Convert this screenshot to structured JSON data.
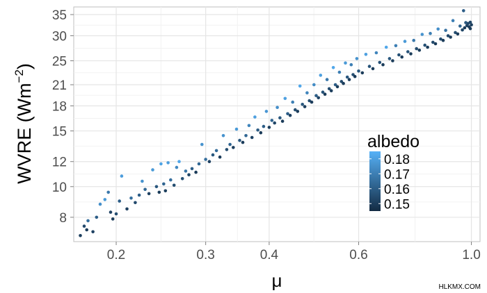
{
  "chart_data": {
    "type": "scatter",
    "x_scale": "log",
    "y_scale": "log",
    "xlabel": "μ",
    "ylabel": "WVRE (Wm",
    "ylabel_superscript": "−2",
    "ylabel_close": ")",
    "xlim": [
      0.165,
      1.04
    ],
    "ylim": [
      6.7,
      37
    ],
    "x_ticks": [
      0.2,
      0.3,
      0.4,
      0.6,
      1.0
    ],
    "x_tick_labels": [
      "0.2",
      "0.3",
      "0.4",
      "0.6",
      "1.0"
    ],
    "y_ticks": [
      8,
      10,
      12,
      15,
      18,
      21,
      25,
      30,
      35
    ],
    "y_tick_labels": [
      "8",
      "10",
      "12",
      "15",
      "18",
      "21",
      "25",
      "30",
      "35"
    ],
    "grid": true,
    "legend": {
      "title": "albedo",
      "placement": "right",
      "range": [
        0.145,
        0.185
      ],
      "ticks": [
        0.15,
        0.16,
        0.17,
        0.18
      ],
      "tick_labels": [
        "0.15",
        "0.16",
        "0.17",
        "0.18"
      ],
      "color_low": "#132B43",
      "color_high": "#56B1F7"
    },
    "points": [
      [
        0.17,
        7.0,
        0.151
      ],
      [
        0.173,
        7.5,
        0.154
      ],
      [
        0.175,
        7.3,
        0.15
      ],
      [
        0.176,
        7.8,
        0.165
      ],
      [
        0.18,
        7.2,
        0.152
      ],
      [
        0.183,
        8.0,
        0.16
      ],
      [
        0.186,
        8.8,
        0.175
      ],
      [
        0.19,
        9.1,
        0.178
      ],
      [
        0.193,
        9.6,
        0.168
      ],
      [
        0.195,
        8.3,
        0.152
      ],
      [
        0.197,
        7.9,
        0.15
      ],
      [
        0.2,
        8.2,
        0.155
      ],
      [
        0.203,
        9.0,
        0.16
      ],
      [
        0.205,
        10.8,
        0.179
      ],
      [
        0.21,
        8.5,
        0.151
      ],
      [
        0.214,
        9.2,
        0.165
      ],
      [
        0.218,
        8.9,
        0.154
      ],
      [
        0.222,
        9.4,
        0.16
      ],
      [
        0.225,
        10.4,
        0.176
      ],
      [
        0.228,
        9.8,
        0.163
      ],
      [
        0.232,
        9.5,
        0.152
      ],
      [
        0.236,
        11.3,
        0.178
      ],
      [
        0.24,
        10.0,
        0.158
      ],
      [
        0.243,
        9.6,
        0.15
      ],
      [
        0.245,
        11.8,
        0.181
      ],
      [
        0.248,
        10.2,
        0.162
      ],
      [
        0.25,
        9.7,
        0.151
      ],
      [
        0.253,
        11.9,
        0.179
      ],
      [
        0.256,
        10.5,
        0.165
      ],
      [
        0.26,
        10.1,
        0.155
      ],
      [
        0.263,
        11.5,
        0.173
      ],
      [
        0.266,
        12.0,
        0.182
      ],
      [
        0.27,
        10.6,
        0.156
      ],
      [
        0.274,
        11.2,
        0.167
      ],
      [
        0.278,
        10.9,
        0.153
      ],
      [
        0.282,
        11.4,
        0.16
      ],
      [
        0.287,
        11.1,
        0.15
      ],
      [
        0.291,
        11.8,
        0.163
      ],
      [
        0.295,
        13.6,
        0.176
      ],
      [
        0.3,
        12.2,
        0.165
      ],
      [
        0.305,
        12.0,
        0.152
      ],
      [
        0.31,
        12.6,
        0.158
      ],
      [
        0.315,
        13.0,
        0.164
      ],
      [
        0.32,
        12.4,
        0.15
      ],
      [
        0.325,
        14.5,
        0.176
      ],
      [
        0.33,
        13.1,
        0.155
      ],
      [
        0.335,
        13.6,
        0.162
      ],
      [
        0.34,
        13.3,
        0.151
      ],
      [
        0.345,
        15.2,
        0.178
      ],
      [
        0.35,
        14.0,
        0.158
      ],
      [
        0.355,
        13.8,
        0.15
      ],
      [
        0.36,
        14.5,
        0.163
      ],
      [
        0.365,
        15.6,
        0.172
      ],
      [
        0.37,
        14.3,
        0.152
      ],
      [
        0.375,
        16.6,
        0.18
      ],
      [
        0.38,
        15.1,
        0.159
      ],
      [
        0.385,
        14.8,
        0.15
      ],
      [
        0.39,
        15.5,
        0.16
      ],
      [
        0.395,
        17.3,
        0.177
      ],
      [
        0.4,
        15.4,
        0.151
      ],
      [
        0.405,
        16.2,
        0.162
      ],
      [
        0.41,
        15.9,
        0.153
      ],
      [
        0.415,
        17.8,
        0.175
      ],
      [
        0.42,
        16.5,
        0.158
      ],
      [
        0.425,
        16.1,
        0.15
      ],
      [
        0.43,
        19.0,
        0.18
      ],
      [
        0.435,
        17.0,
        0.16
      ],
      [
        0.44,
        16.8,
        0.152
      ],
      [
        0.445,
        18.5,
        0.17
      ],
      [
        0.45,
        17.5,
        0.155
      ],
      [
        0.455,
        17.3,
        0.15
      ],
      [
        0.46,
        20.8,
        0.182
      ],
      [
        0.465,
        18.2,
        0.158
      ],
      [
        0.47,
        17.9,
        0.151
      ],
      [
        0.475,
        19.8,
        0.172
      ],
      [
        0.48,
        18.7,
        0.155
      ],
      [
        0.485,
        18.5,
        0.15
      ],
      [
        0.49,
        21.0,
        0.174
      ],
      [
        0.495,
        19.4,
        0.16
      ],
      [
        0.5,
        19.1,
        0.152
      ],
      [
        0.505,
        22.5,
        0.18
      ],
      [
        0.51,
        19.9,
        0.157
      ],
      [
        0.515,
        19.6,
        0.15
      ],
      [
        0.52,
        21.8,
        0.168
      ],
      [
        0.525,
        20.4,
        0.155
      ],
      [
        0.53,
        20.1,
        0.151
      ],
      [
        0.535,
        23.8,
        0.182
      ],
      [
        0.54,
        21.0,
        0.16
      ],
      [
        0.545,
        20.7,
        0.15
      ],
      [
        0.55,
        23.0,
        0.17
      ],
      [
        0.555,
        21.5,
        0.154
      ],
      [
        0.56,
        21.2,
        0.15
      ],
      [
        0.565,
        24.6,
        0.178
      ],
      [
        0.57,
        22.2,
        0.158
      ],
      [
        0.575,
        21.8,
        0.151
      ],
      [
        0.58,
        24.3,
        0.17
      ],
      [
        0.585,
        22.6,
        0.155
      ],
      [
        0.59,
        22.3,
        0.15
      ],
      [
        0.595,
        25.4,
        0.176
      ],
      [
        0.6,
        23.2,
        0.158
      ],
      [
        0.61,
        22.9,
        0.15
      ],
      [
        0.62,
        26.2,
        0.18
      ],
      [
        0.63,
        24.0,
        0.157
      ],
      [
        0.64,
        23.6,
        0.15
      ],
      [
        0.65,
        26.5,
        0.172
      ],
      [
        0.66,
        24.7,
        0.156
      ],
      [
        0.67,
        24.3,
        0.15
      ],
      [
        0.68,
        27.6,
        0.182
      ],
      [
        0.69,
        25.4,
        0.158
      ],
      [
        0.7,
        25.0,
        0.15
      ],
      [
        0.71,
        27.9,
        0.17
      ],
      [
        0.72,
        26.1,
        0.156
      ],
      [
        0.73,
        25.7,
        0.15
      ],
      [
        0.74,
        28.8,
        0.178
      ],
      [
        0.75,
        26.7,
        0.157
      ],
      [
        0.76,
        26.3,
        0.15
      ],
      [
        0.77,
        29.0,
        0.168
      ],
      [
        0.78,
        27.3,
        0.155
      ],
      [
        0.79,
        27.0,
        0.15
      ],
      [
        0.8,
        30.3,
        0.176
      ],
      [
        0.81,
        28.0,
        0.156
      ],
      [
        0.82,
        27.6,
        0.15
      ],
      [
        0.83,
        30.5,
        0.17
      ],
      [
        0.84,
        28.6,
        0.154
      ],
      [
        0.85,
        28.3,
        0.15
      ],
      [
        0.86,
        31.5,
        0.175
      ],
      [
        0.87,
        29.3,
        0.155
      ],
      [
        0.88,
        29.0,
        0.15
      ],
      [
        0.89,
        31.2,
        0.166
      ],
      [
        0.9,
        30.0,
        0.154
      ],
      [
        0.91,
        29.7,
        0.15
      ],
      [
        0.92,
        33.5,
        0.17
      ],
      [
        0.93,
        30.7,
        0.155
      ],
      [
        0.94,
        30.4,
        0.15
      ],
      [
        0.95,
        32.2,
        0.162
      ],
      [
        0.96,
        31.3,
        0.153
      ],
      [
        0.965,
        36.0,
        0.16
      ],
      [
        0.97,
        31.8,
        0.15
      ],
      [
        0.975,
        33.0,
        0.158
      ],
      [
        0.98,
        32.3,
        0.152
      ],
      [
        0.985,
        32.8,
        0.154
      ],
      [
        0.99,
        32.0,
        0.15
      ],
      [
        0.995,
        33.1,
        0.153
      ],
      [
        1.0,
        32.5,
        0.151
      ],
      [
        0.995,
        31.6,
        0.15
      ]
    ]
  },
  "watermark": "HLKMX.COM"
}
